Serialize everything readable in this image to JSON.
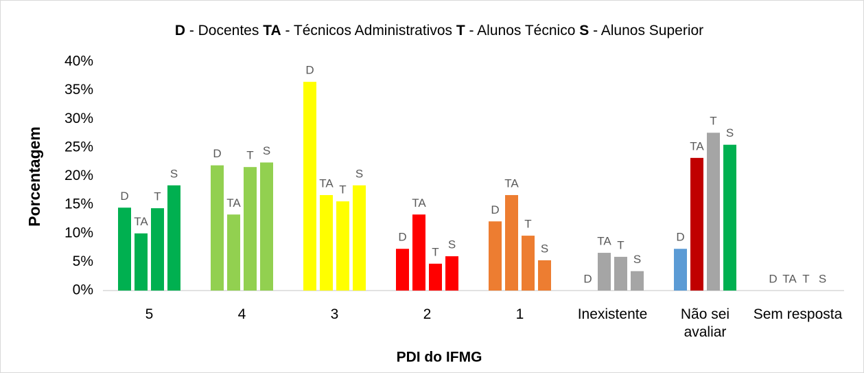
{
  "chart_data": {
    "type": "bar",
    "title": [
      {
        "text": "D",
        "bold": true
      },
      {
        "text": " - Docentes ",
        "bold": false
      },
      {
        "text": "TA",
        "bold": true
      },
      {
        "text": " - Técnicos Administrativos ",
        "bold": false
      },
      {
        "text": "T",
        "bold": true
      },
      {
        "text": " - Alunos Técnico ",
        "bold": false
      },
      {
        "text": "S",
        "bold": true
      },
      {
        "text": " - Alunos Superior",
        "bold": false
      }
    ],
    "y_label": "Porcentagem",
    "x_label": "PDI do IFMG",
    "categories": [
      "5",
      "4",
      "3",
      "2",
      "1",
      "Inexistente",
      "Não sei avaliar",
      "Sem resposta"
    ],
    "series": [
      {
        "name": "D",
        "values": [
          14.5,
          21.9,
          36.5,
          7.3,
          12.1,
          0,
          7.3,
          0
        ],
        "colors": [
          "#00b050",
          "#92d050",
          "#ffff00",
          "#ff0000",
          "#ed7d31",
          "#a5a5a5",
          "#5b9bd5",
          "#a5a5a5"
        ]
      },
      {
        "name": "TA",
        "values": [
          10,
          13.3,
          16.7,
          13.3,
          16.7,
          6.6,
          23.2,
          0
        ],
        "colors": [
          "#00b050",
          "#92d050",
          "#ffff00",
          "#ff0000",
          "#ed7d31",
          "#a5a5a5",
          "#c00000",
          "#a5a5a5"
        ]
      },
      {
        "name": "T",
        "values": [
          14.4,
          21.6,
          15.6,
          4.7,
          9.6,
          5.9,
          27.6,
          0
        ],
        "colors": [
          "#00b050",
          "#92d050",
          "#ffff00",
          "#ff0000",
          "#ed7d31",
          "#a5a5a5",
          "#a5a5a5",
          "#a5a5a5"
        ]
      },
      {
        "name": "S",
        "values": [
          18.4,
          22.4,
          18.4,
          6.0,
          5.3,
          3.4,
          25.5,
          0
        ],
        "colors": [
          "#00b050",
          "#92d050",
          "#ffff00",
          "#ff0000",
          "#ed7d31",
          "#a5a5a5",
          "#00b050",
          "#a5a5a5"
        ]
      }
    ],
    "ylim": [
      0,
      40
    ],
    "yticks": [
      {
        "value": 0,
        "label": "0%"
      },
      {
        "value": 5,
        "label": "5%"
      },
      {
        "value": 10,
        "label": "10%"
      },
      {
        "value": 15,
        "label": "15%"
      },
      {
        "value": 20,
        "label": "20%"
      },
      {
        "value": 25,
        "label": "25%"
      },
      {
        "value": 30,
        "label": "30%"
      },
      {
        "value": 35,
        "label": "35%"
      },
      {
        "value": 40,
        "label": "40%"
      }
    ],
    "grid": false
  }
}
